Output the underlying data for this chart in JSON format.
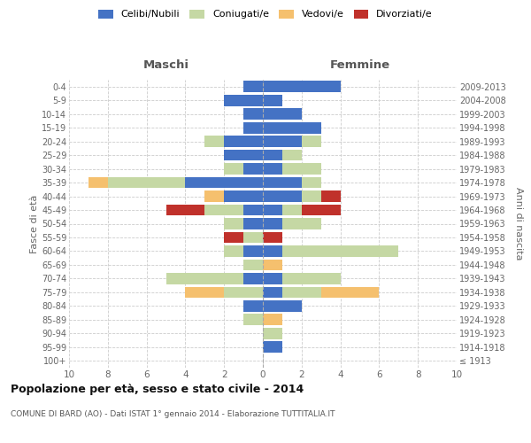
{
  "age_groups": [
    "100+",
    "95-99",
    "90-94",
    "85-89",
    "80-84",
    "75-79",
    "70-74",
    "65-69",
    "60-64",
    "55-59",
    "50-54",
    "45-49",
    "40-44",
    "35-39",
    "30-34",
    "25-29",
    "20-24",
    "15-19",
    "10-14",
    "5-9",
    "0-4"
  ],
  "birth_years": [
    "≤ 1913",
    "1914-1918",
    "1919-1923",
    "1924-1928",
    "1929-1933",
    "1934-1938",
    "1939-1943",
    "1944-1948",
    "1949-1953",
    "1954-1958",
    "1959-1963",
    "1964-1968",
    "1969-1973",
    "1974-1978",
    "1979-1983",
    "1984-1988",
    "1989-1993",
    "1994-1998",
    "1999-2003",
    "2004-2008",
    "2009-2013"
  ],
  "colors": {
    "celibi": "#4472c4",
    "coniugati": "#c5d8a4",
    "vedovi": "#f5c06e",
    "divorziati": "#c0312b"
  },
  "maschi": {
    "celibi": [
      0,
      0,
      0,
      0,
      1,
      0,
      1,
      0,
      1,
      0,
      1,
      1,
      2,
      4,
      1,
      2,
      2,
      1,
      1,
      2,
      1
    ],
    "coniugati": [
      0,
      0,
      0,
      1,
      0,
      2,
      4,
      1,
      1,
      1,
      1,
      2,
      0,
      4,
      1,
      0,
      1,
      0,
      0,
      0,
      0
    ],
    "vedovi": [
      0,
      0,
      0,
      0,
      0,
      2,
      0,
      0,
      0,
      0,
      0,
      0,
      1,
      1,
      0,
      0,
      0,
      0,
      0,
      0,
      0
    ],
    "divorziati": [
      0,
      0,
      0,
      0,
      0,
      0,
      0,
      0,
      0,
      1,
      0,
      2,
      0,
      0,
      0,
      0,
      0,
      0,
      0,
      0,
      0
    ]
  },
  "femmine": {
    "nubili": [
      0,
      1,
      0,
      0,
      2,
      1,
      1,
      0,
      1,
      0,
      1,
      1,
      2,
      2,
      1,
      1,
      2,
      3,
      2,
      1,
      4
    ],
    "coniugate": [
      0,
      0,
      1,
      0,
      0,
      2,
      3,
      0,
      6,
      0,
      2,
      1,
      1,
      1,
      2,
      1,
      1,
      0,
      0,
      0,
      0
    ],
    "vedove": [
      0,
      0,
      0,
      1,
      0,
      3,
      0,
      1,
      0,
      0,
      0,
      0,
      0,
      0,
      0,
      0,
      0,
      0,
      0,
      0,
      0
    ],
    "divorziate": [
      0,
      0,
      0,
      0,
      0,
      0,
      0,
      0,
      0,
      1,
      0,
      2,
      1,
      0,
      0,
      0,
      0,
      0,
      0,
      0,
      0
    ]
  },
  "xlim": 10,
  "title": "Popolazione per età, sesso e stato civile - 2014",
  "subtitle": "COMUNE DI BARD (AO) - Dati ISTAT 1° gennaio 2014 - Elaborazione TUTTITALIA.IT",
  "xlabel_left": "Maschi",
  "xlabel_right": "Femmine",
  "ylabel_left": "Fasce di età",
  "ylabel_right": "Anni di nascita",
  "bg_color": "#ffffff",
  "grid_color": "#cccccc",
  "legend_labels": [
    "Celibi/Nubili",
    "Coniugati/e",
    "Vedovi/e",
    "Divorziati/e"
  ],
  "xtick_even": [
    10,
    8,
    6,
    4,
    2,
    0,
    2,
    4,
    6,
    8,
    10
  ]
}
